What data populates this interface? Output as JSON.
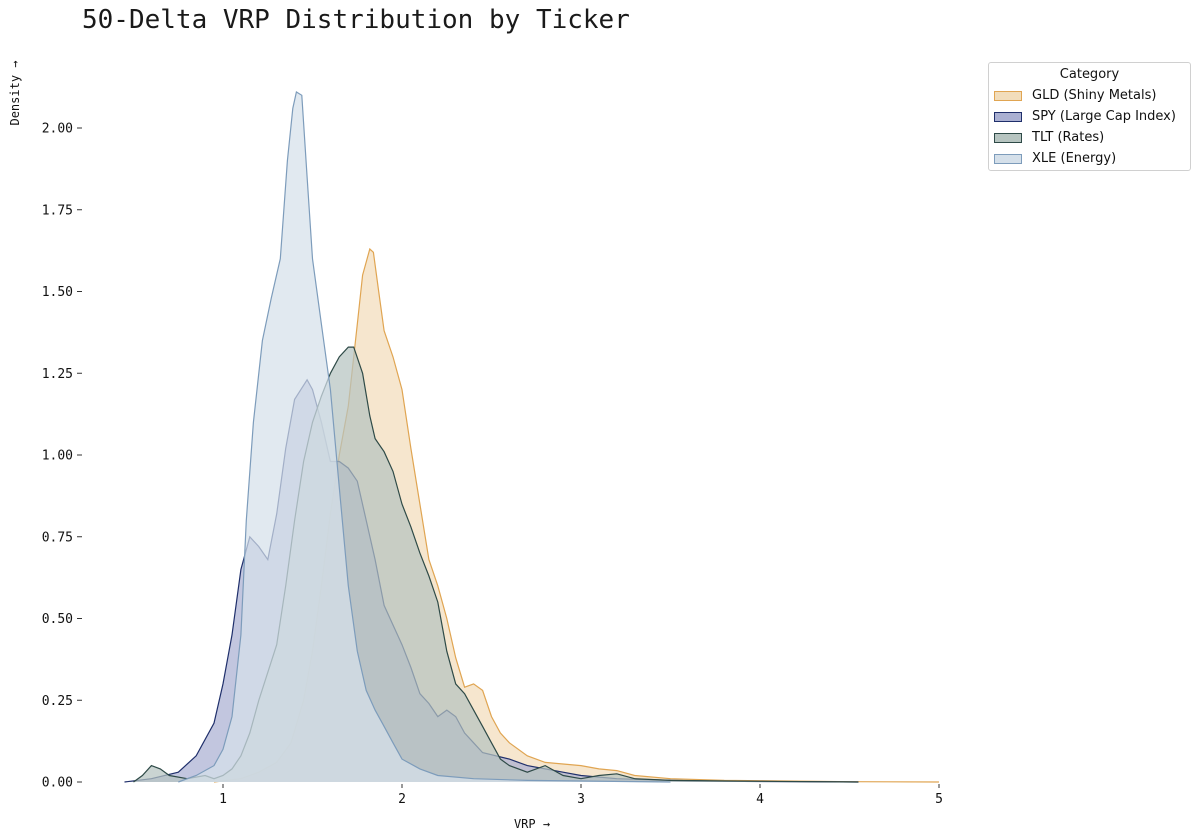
{
  "chart_data": {
    "type": "area",
    "title": "50-Delta VRP Distribution by Ticker",
    "xlabel": "VRP →",
    "ylabel": "Density →",
    "xlim": [
      0.45,
      5.0
    ],
    "ylim": [
      0,
      2.12
    ],
    "x_ticks": [
      "1",
      "2",
      "3",
      "4",
      "5"
    ],
    "y_ticks": [
      "0.00",
      "0.25",
      "0.50",
      "0.75",
      "1.00",
      "1.25",
      "1.50",
      "1.75",
      "2.00"
    ],
    "grid": false,
    "legend_title": "Category",
    "legend_position": "top-right, outside plot",
    "series": [
      {
        "name": "GLD (Shiny Metals)",
        "color": "#e0a552",
        "fill": "#f2ddbb",
        "points": [
          [
            0.95,
            0
          ],
          [
            1.1,
            0.01
          ],
          [
            1.2,
            0.03
          ],
          [
            1.3,
            0.06
          ],
          [
            1.38,
            0.12
          ],
          [
            1.45,
            0.25
          ],
          [
            1.5,
            0.4
          ],
          [
            1.55,
            0.6
          ],
          [
            1.6,
            0.82
          ],
          [
            1.65,
            1.0
          ],
          [
            1.7,
            1.15
          ],
          [
            1.75,
            1.4
          ],
          [
            1.78,
            1.55
          ],
          [
            1.82,
            1.63
          ],
          [
            1.84,
            1.62
          ],
          [
            1.87,
            1.5
          ],
          [
            1.9,
            1.38
          ],
          [
            1.95,
            1.3
          ],
          [
            2.0,
            1.2
          ],
          [
            2.05,
            1.02
          ],
          [
            2.1,
            0.85
          ],
          [
            2.15,
            0.68
          ],
          [
            2.2,
            0.6
          ],
          [
            2.25,
            0.5
          ],
          [
            2.3,
            0.38
          ],
          [
            2.35,
            0.29
          ],
          [
            2.4,
            0.3
          ],
          [
            2.45,
            0.28
          ],
          [
            2.5,
            0.2
          ],
          [
            2.55,
            0.15
          ],
          [
            2.6,
            0.12
          ],
          [
            2.7,
            0.08
          ],
          [
            2.8,
            0.06
          ],
          [
            2.9,
            0.055
          ],
          [
            3.0,
            0.05
          ],
          [
            3.1,
            0.04
          ],
          [
            3.2,
            0.035
          ],
          [
            3.3,
            0.02
          ],
          [
            3.5,
            0.01
          ],
          [
            3.8,
            0.005
          ],
          [
            4.0,
            0.004
          ],
          [
            4.5,
            0.001
          ],
          [
            5.0,
            0
          ]
        ]
      },
      {
        "name": "SPY (Large Cap Index)",
        "color": "#1f2f6b",
        "fill": "#aab0d2",
        "points": [
          [
            0.45,
            0
          ],
          [
            0.6,
            0.01
          ],
          [
            0.75,
            0.03
          ],
          [
            0.85,
            0.08
          ],
          [
            0.95,
            0.18
          ],
          [
            1.0,
            0.3
          ],
          [
            1.05,
            0.45
          ],
          [
            1.1,
            0.65
          ],
          [
            1.15,
            0.75
          ],
          [
            1.2,
            0.72
          ],
          [
            1.25,
            0.68
          ],
          [
            1.3,
            0.82
          ],
          [
            1.35,
            1.02
          ],
          [
            1.4,
            1.17
          ],
          [
            1.47,
            1.23
          ],
          [
            1.5,
            1.2
          ],
          [
            1.55,
            1.1
          ],
          [
            1.6,
            0.98
          ],
          [
            1.65,
            0.98
          ],
          [
            1.7,
            0.96
          ],
          [
            1.75,
            0.92
          ],
          [
            1.8,
            0.8
          ],
          [
            1.85,
            0.68
          ],
          [
            1.9,
            0.54
          ],
          [
            1.95,
            0.48
          ],
          [
            2.0,
            0.42
          ],
          [
            2.05,
            0.35
          ],
          [
            2.1,
            0.27
          ],
          [
            2.15,
            0.24
          ],
          [
            2.2,
            0.2
          ],
          [
            2.25,
            0.22
          ],
          [
            2.3,
            0.2
          ],
          [
            2.35,
            0.15
          ],
          [
            2.4,
            0.12
          ],
          [
            2.45,
            0.09
          ],
          [
            2.6,
            0.07
          ],
          [
            2.7,
            0.05
          ],
          [
            2.8,
            0.04
          ],
          [
            2.9,
            0.03
          ],
          [
            3.0,
            0.02
          ],
          [
            3.2,
            0.01
          ],
          [
            3.5,
            0.005
          ],
          [
            3.8,
            0.002
          ],
          [
            4.2,
            0.001
          ],
          [
            4.55,
            0
          ]
        ]
      },
      {
        "name": "TLT (Rates)",
        "color": "#2e4a47",
        "fill": "#b6c4c0",
        "points": [
          [
            0.5,
            0
          ],
          [
            0.55,
            0.02
          ],
          [
            0.6,
            0.05
          ],
          [
            0.65,
            0.04
          ],
          [
            0.7,
            0.02
          ],
          [
            0.8,
            0.01
          ],
          [
            0.9,
            0.02
          ],
          [
            0.95,
            0.01
          ],
          [
            1.0,
            0.02
          ],
          [
            1.05,
            0.04
          ],
          [
            1.1,
            0.08
          ],
          [
            1.15,
            0.15
          ],
          [
            1.2,
            0.25
          ],
          [
            1.3,
            0.42
          ],
          [
            1.35,
            0.6
          ],
          [
            1.4,
            0.8
          ],
          [
            1.45,
            0.98
          ],
          [
            1.5,
            1.1
          ],
          [
            1.55,
            1.18
          ],
          [
            1.6,
            1.25
          ],
          [
            1.65,
            1.3
          ],
          [
            1.7,
            1.33
          ],
          [
            1.73,
            1.33
          ],
          [
            1.78,
            1.25
          ],
          [
            1.82,
            1.12
          ],
          [
            1.85,
            1.05
          ],
          [
            1.9,
            1.01
          ],
          [
            1.95,
            0.95
          ],
          [
            2.0,
            0.85
          ],
          [
            2.05,
            0.78
          ],
          [
            2.1,
            0.7
          ],
          [
            2.15,
            0.63
          ],
          [
            2.2,
            0.55
          ],
          [
            2.25,
            0.4
          ],
          [
            2.3,
            0.3
          ],
          [
            2.35,
            0.27
          ],
          [
            2.4,
            0.22
          ],
          [
            2.45,
            0.17
          ],
          [
            2.5,
            0.12
          ],
          [
            2.55,
            0.07
          ],
          [
            2.6,
            0.05
          ],
          [
            2.7,
            0.03
          ],
          [
            2.8,
            0.05
          ],
          [
            2.9,
            0.02
          ],
          [
            3.0,
            0.01
          ],
          [
            3.1,
            0.02
          ],
          [
            3.2,
            0.025
          ],
          [
            3.3,
            0.01
          ],
          [
            3.5,
            0.005
          ],
          [
            4.0,
            0.002
          ],
          [
            4.55,
            0
          ]
        ]
      },
      {
        "name": "XLE (Energy)",
        "color": "#7d9cbb",
        "fill": "#d5e0ea",
        "points": [
          [
            0.75,
            0
          ],
          [
            0.85,
            0.02
          ],
          [
            0.95,
            0.05
          ],
          [
            1.0,
            0.1
          ],
          [
            1.05,
            0.2
          ],
          [
            1.1,
            0.45
          ],
          [
            1.13,
            0.8
          ],
          [
            1.17,
            1.1
          ],
          [
            1.22,
            1.35
          ],
          [
            1.27,
            1.48
          ],
          [
            1.32,
            1.6
          ],
          [
            1.36,
            1.9
          ],
          [
            1.39,
            2.06
          ],
          [
            1.41,
            2.11
          ],
          [
            1.44,
            2.1
          ],
          [
            1.47,
            1.85
          ],
          [
            1.5,
            1.6
          ],
          [
            1.55,
            1.4
          ],
          [
            1.6,
            1.2
          ],
          [
            1.65,
            0.9
          ],
          [
            1.7,
            0.6
          ],
          [
            1.75,
            0.4
          ],
          [
            1.8,
            0.28
          ],
          [
            1.85,
            0.22
          ],
          [
            1.9,
            0.17
          ],
          [
            1.95,
            0.12
          ],
          [
            2.0,
            0.07
          ],
          [
            2.1,
            0.04
          ],
          [
            2.2,
            0.02
          ],
          [
            2.4,
            0.01
          ],
          [
            2.7,
            0.005
          ],
          [
            3.0,
            0.003
          ],
          [
            3.5,
            0
          ]
        ]
      }
    ]
  }
}
